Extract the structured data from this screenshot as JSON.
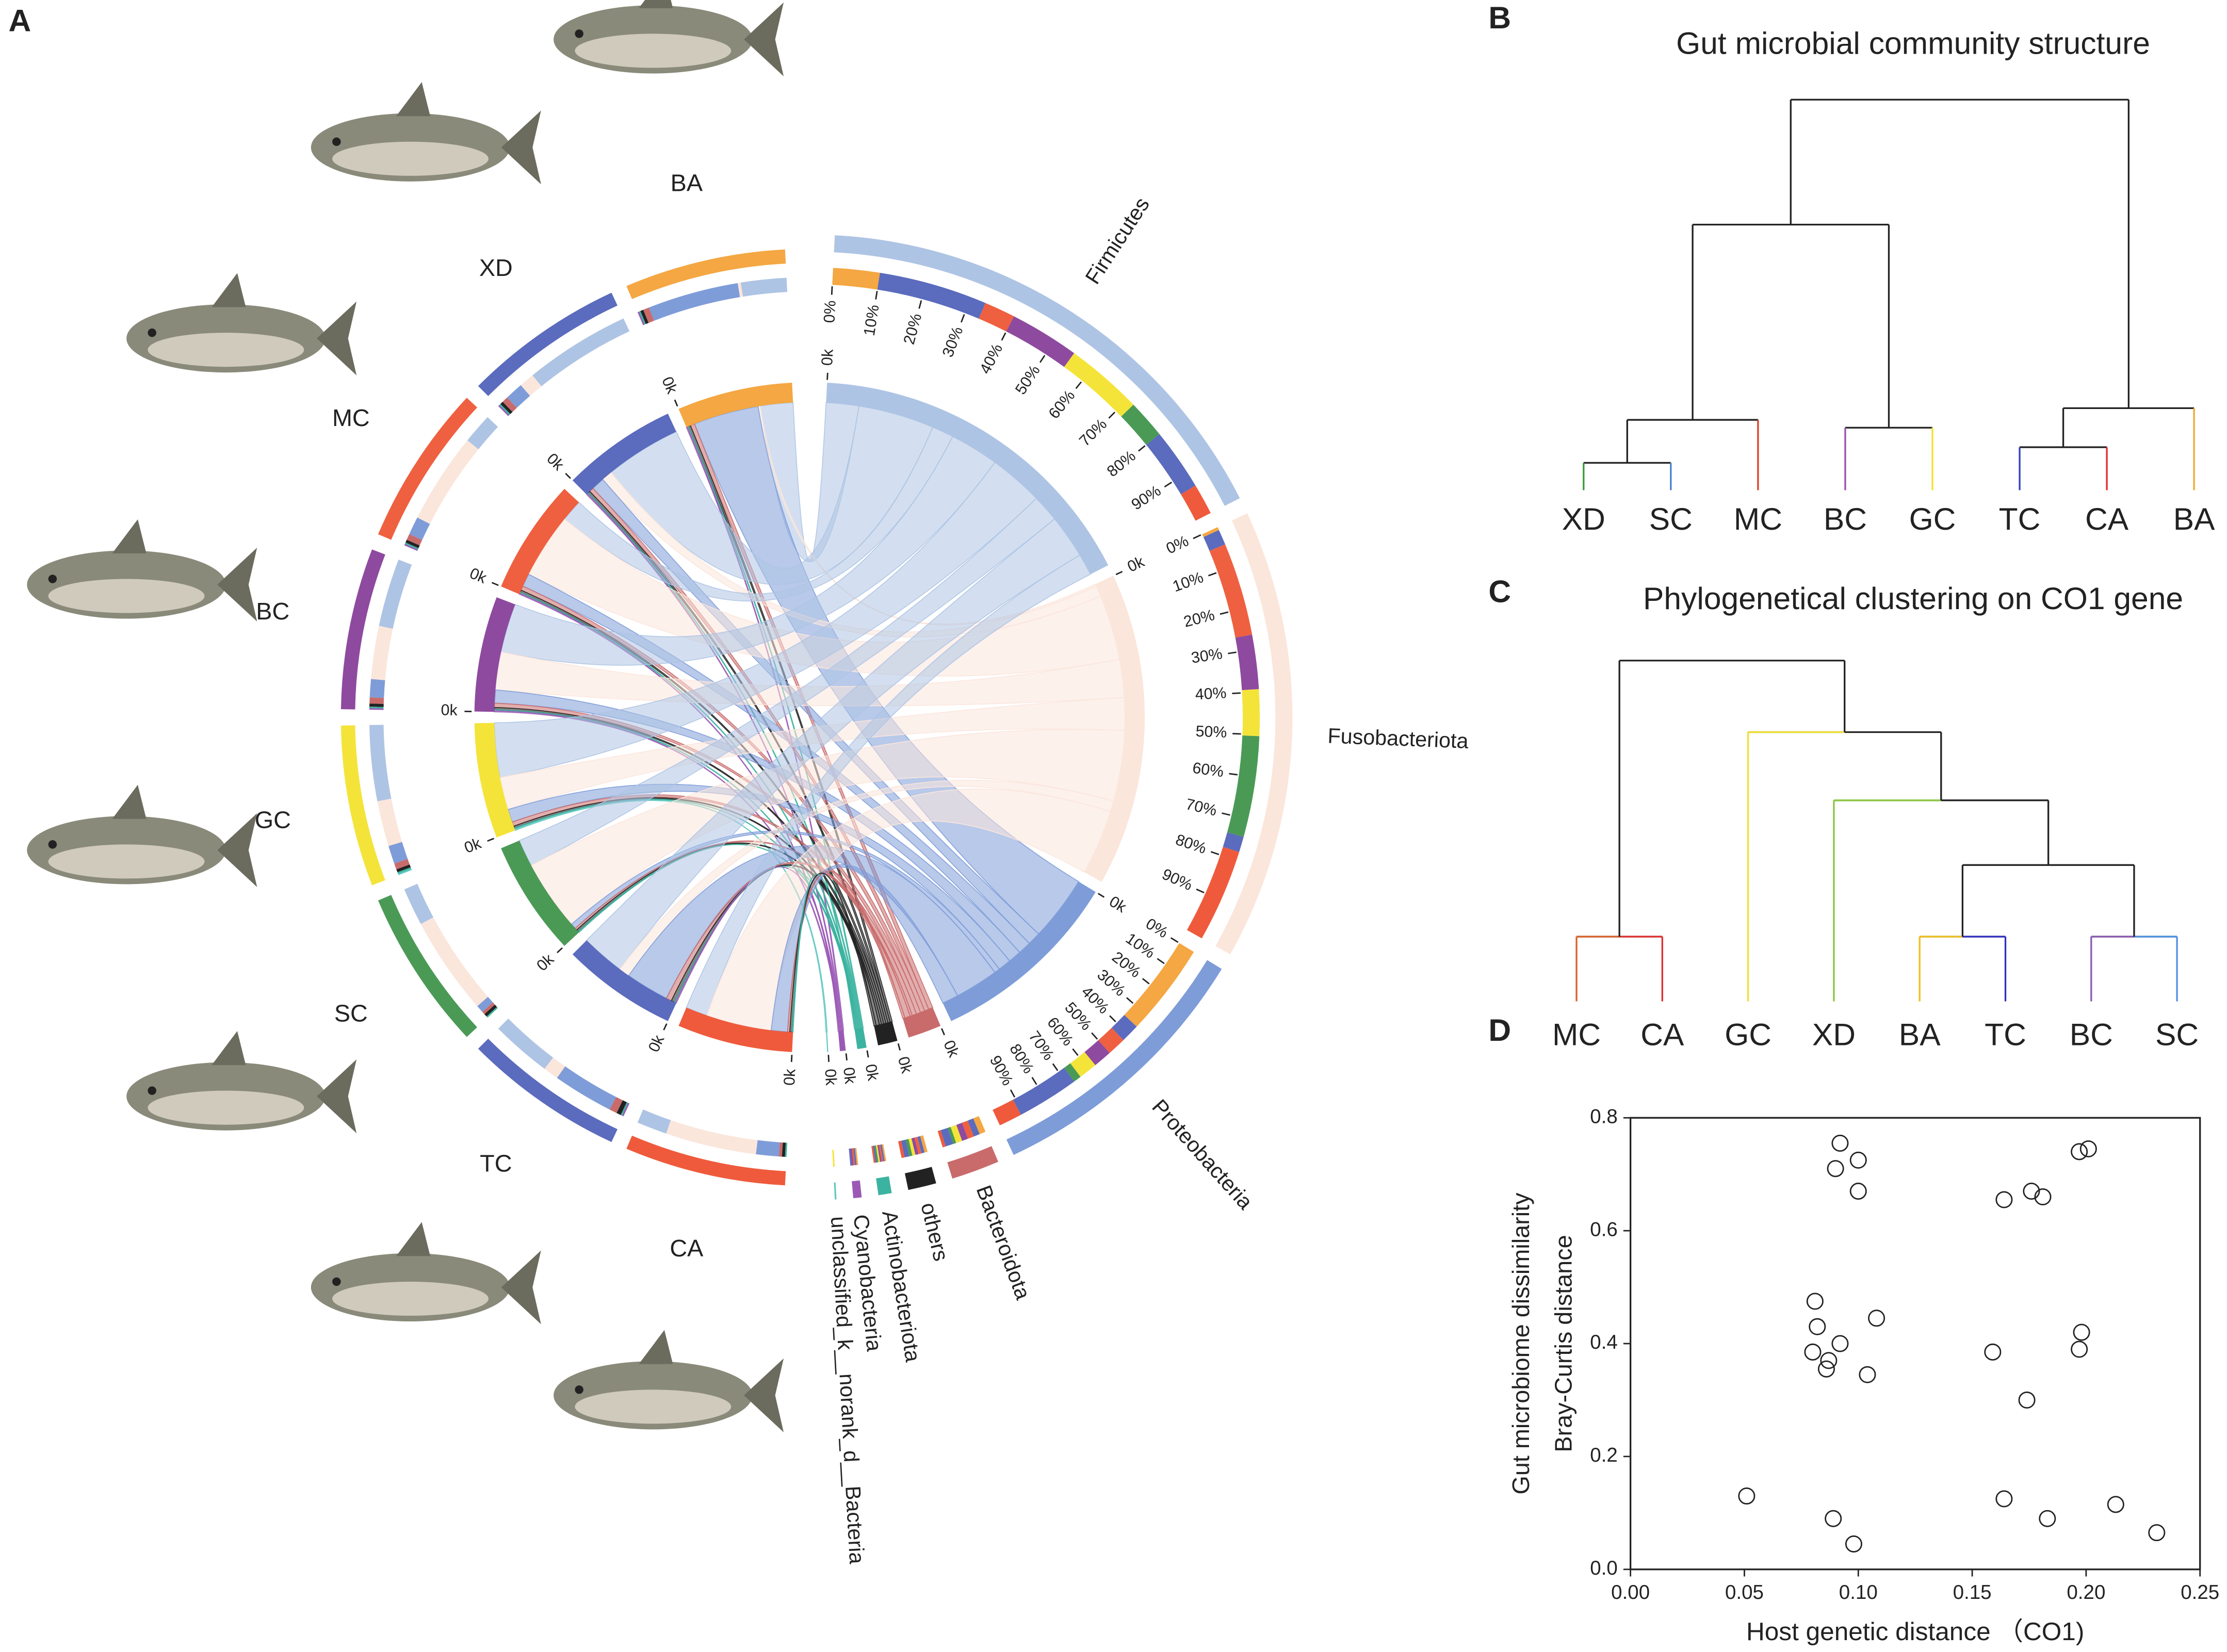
{
  "chart_data": [
    {
      "type": "chord",
      "panel": "A",
      "sectors_from": [
        "BA",
        "XD",
        "MC",
        "BC",
        "GC",
        "SC",
        "TC",
        "CA"
      ],
      "from_colors": [
        "#f4a742",
        "#5b6bbd",
        "#ef6040",
        "#8e4a9f",
        "#f4e43a",
        "#4a9a56",
        "#5b6bbd",
        "#ef5a3c"
      ],
      "sectors_to": [
        "Firmicutes",
        "Fusobacteriota",
        "Proteobacteria",
        "Bacteroidota",
        "others",
        "Actinobacteriota",
        "Cyanobacteria",
        "unclassified_k__norank_d__Bacteria"
      ],
      "to_colors": [
        "#aec4e4",
        "#fbe6dc",
        "#7e9cd8",
        "#c96b6b",
        "#222222",
        "#3bb3a0",
        "#9b59b6",
        "#5fc9c0"
      ],
      "matrix": [
        [
          30,
          2,
          60,
          4,
          2,
          1,
          1,
          0
        ],
        [
          70,
          10,
          12,
          4,
          2,
          1,
          1,
          0
        ],
        [
          20,
          60,
          12,
          4,
          2,
          1,
          1,
          0
        ],
        [
          45,
          35,
          12,
          4,
          2,
          1,
          1,
          0
        ],
        [
          50,
          30,
          12,
          4,
          2,
          1,
          0,
          1
        ],
        [
          25,
          65,
          5,
          2,
          2,
          1,
          0,
          0
        ],
        [
          40,
          10,
          40,
          5,
          3,
          1,
          1,
          0
        ],
        [
          20,
          60,
          15,
          2,
          2,
          1,
          0,
          0
        ]
      ],
      "ring_ticks": [
        {
          "value": 0,
          "label": "0%"
        },
        {
          "value": 10,
          "label": "10%"
        },
        {
          "value": 20,
          "label": "20%"
        },
        {
          "value": 30,
          "label": "30%"
        },
        {
          "value": 40,
          "label": "40%"
        },
        {
          "value": 50,
          "label": "50%"
        },
        {
          "value": 60,
          "label": "60%"
        },
        {
          "value": 70,
          "label": "70%"
        },
        {
          "value": 80,
          "label": "80%"
        },
        {
          "value": 90,
          "label": "90%"
        }
      ],
      "inner_tick": {
        "value": 0,
        "label": "0k"
      }
    },
    {
      "type": "dendrogram",
      "panel": "B",
      "title": "Gut microbial community structure",
      "color_leaf_brackets": false,
      "tree": {
        "height": 1,
        "children": [
          {
            "height": 0.68,
            "children": [
              {
                "height": 0.18,
                "children": [
                  {
                    "height": 0.07,
                    "children": [
                      {
                        "name": "XD",
                        "color": "#3a9a3a"
                      },
                      {
                        "name": "SC",
                        "color": "#4a7fd0"
                      }
                    ]
                  },
                  {
                    "name": "MC",
                    "color": "#e0402a"
                  }
                ]
              },
              {
                "height": 0.16,
                "children": [
                  {
                    "name": "BC",
                    "color": "#9b4fb0"
                  },
                  {
                    "name": "GC",
                    "color": "#f2e22a"
                  }
                ]
              }
            ]
          },
          {
            "height": 0.21,
            "children": [
              {
                "height": 0.11,
                "children": [
                  {
                    "name": "TC",
                    "color": "#3040c0"
                  },
                  {
                    "name": "CA",
                    "color": "#e03030"
                  }
                ]
              },
              {
                "name": "BA",
                "color": "#f0a830"
              }
            ]
          }
        ]
      }
    },
    {
      "type": "dendrogram",
      "panel": "C",
      "title": "Phylogenetical clustering  on CO1 gene",
      "color_leaf_brackets": true,
      "tree": {
        "height": 1,
        "children": [
          {
            "height": 0.19,
            "children": [
              {
                "name": "MC",
                "color": "#d9632a"
              },
              {
                "name": "CA",
                "color": "#e03030"
              }
            ]
          },
          {
            "height": 0.79,
            "children": [
              {
                "name": "GC",
                "color": "#f0e030"
              },
              {
                "height": 0.59,
                "children": [
                  {
                    "name": "XD",
                    "color": "#8cc63f"
                  },
                  {
                    "height": 0.4,
                    "children": [
                      {
                        "height": 0.19,
                        "children": [
                          {
                            "name": "BA",
                            "color": "#f0c020"
                          },
                          {
                            "name": "TC",
                            "color": "#3030c0"
                          }
                        ]
                      },
                      {
                        "height": 0.19,
                        "children": [
                          {
                            "name": "BC",
                            "color": "#8a5ab0"
                          },
                          {
                            "name": "SC",
                            "color": "#5090e0"
                          }
                        ]
                      }
                    ]
                  }
                ]
              }
            ]
          }
        ]
      }
    },
    {
      "type": "scatter",
      "panel": "D",
      "x": [
        0.051,
        0.089,
        0.098,
        0.08,
        0.082,
        0.081,
        0.086,
        0.087,
        0.092,
        0.104,
        0.108,
        0.09,
        0.092,
        0.1,
        0.1,
        0.159,
        0.164,
        0.164,
        0.174,
        0.176,
        0.181,
        0.183,
        0.197,
        0.201,
        0.198,
        0.197,
        0.213,
        0.231
      ],
      "y": [
        0.13,
        0.09,
        0.045,
        0.385,
        0.43,
        0.475,
        0.355,
        0.37,
        0.4,
        0.345,
        0.445,
        0.71,
        0.755,
        0.725,
        0.67,
        0.385,
        0.655,
        0.125,
        0.3,
        0.67,
        0.66,
        0.09,
        0.74,
        0.745,
        0.42,
        0.39,
        0.115,
        0.065
      ],
      "xlim": [
        0,
        0.25
      ],
      "ylim": [
        0,
        0.8
      ],
      "xticks": [
        {
          "value": 0,
          "label": "0.00"
        },
        {
          "value": 0.05,
          "label": "0.05"
        },
        {
          "value": 0.1,
          "label": "0.10"
        },
        {
          "value": 0.15,
          "label": "0.15"
        },
        {
          "value": 0.2,
          "label": "0.20"
        },
        {
          "value": 0.25,
          "label": "0.25"
        }
      ],
      "yticks": [
        {
          "value": 0,
          "label": "0.0"
        },
        {
          "value": 0.2,
          "label": "0.2"
        },
        {
          "value": 0.4,
          "label": "0.4"
        },
        {
          "value": 0.6,
          "label": "0.6"
        },
        {
          "value": 0.8,
          "label": "0.8"
        }
      ],
      "xlabel": "Host genetic distance （CO1)",
      "ylabel": [
        "Gut microbiome dissimilarity",
        "Bray-Curtis distance"
      ]
    }
  ]
}
